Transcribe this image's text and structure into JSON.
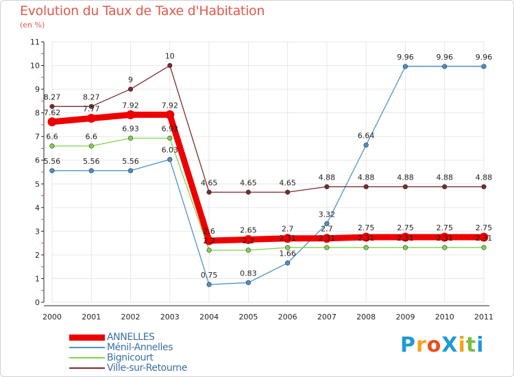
{
  "title": "Evolution du Taux de Taxe d'Habitation",
  "subtitle": "(en %)",
  "logo": {
    "text": "ProXiti",
    "letters": [
      "P",
      "r",
      "o",
      "X",
      "i",
      "t",
      "i"
    ],
    "colors": [
      "#1f9ad6",
      "#f7a21a",
      "#e94e1b",
      "#1f9ad6",
      "#f7a21a",
      "#7bbf3a",
      "#1f9ad6"
    ]
  },
  "chart_data": {
    "type": "line",
    "x": [
      "2000",
      "2001",
      "2002",
      "2003",
      "2004",
      "2005",
      "2006",
      "2007",
      "2008",
      "2009",
      "2010",
      "2011"
    ],
    "yticks": [
      "0",
      "1",
      "2",
      "3",
      "4",
      "5",
      "6",
      "7",
      "8",
      "9",
      "10",
      "11"
    ],
    "ylim": [
      0,
      11
    ],
    "grid": true,
    "legend_position": "bottom-left",
    "series": [
      {
        "name": "ANNELLES",
        "color": "#ee0000",
        "values": [
          7.62,
          7.77,
          7.92,
          7.92,
          2.6,
          2.65,
          2.7,
          2.7,
          2.75,
          2.75,
          2.75,
          2.75
        ],
        "labels": [
          "7.62",
          "7.77",
          "7.92",
          "7.92",
          "2.6",
          "2.65",
          "2.7",
          "2.7",
          "2.75",
          "2.75",
          "2.75",
          "2.75"
        ]
      },
      {
        "name": "Ménil-Annelles",
        "color": "#4a90c8",
        "values": [
          5.56,
          5.56,
          5.56,
          6.03,
          0.75,
          0.83,
          1.66,
          3.32,
          6.64,
          9.96,
          9.96,
          9.96
        ],
        "labels": [
          "5.56",
          "5.56",
          "5.56",
          "6.03",
          "0.75",
          "0.83",
          "1.66",
          "3.32",
          "6.64",
          "9.96",
          "9.96",
          "9.96"
        ]
      },
      {
        "name": "Bignicourt",
        "color": "#7fd34a",
        "values": [
          6.6,
          6.6,
          6.93,
          6.93,
          2.2,
          2.2,
          2.31,
          2.31,
          2.31,
          2.31,
          2.31,
          2.31
        ],
        "labels": [
          "6.6",
          "6.6",
          "6.93",
          "6.93",
          "2.2",
          "2.2",
          "2.31",
          "2.31",
          "2.31",
          "2.31",
          "2.31",
          "2.31"
        ]
      },
      {
        "name": "Ville-sur-Retourne",
        "color": "#7a2a2a",
        "values": [
          8.27,
          8.27,
          9,
          10,
          4.65,
          4.65,
          4.65,
          4.88,
          4.88,
          4.88,
          4.88,
          4.88
        ],
        "labels": [
          "8.27",
          "8.27",
          "9",
          "10",
          "4.65",
          "4.65",
          "4.65",
          "4.88",
          "4.88",
          "4.88",
          "4.88",
          "4.88"
        ]
      }
    ]
  }
}
